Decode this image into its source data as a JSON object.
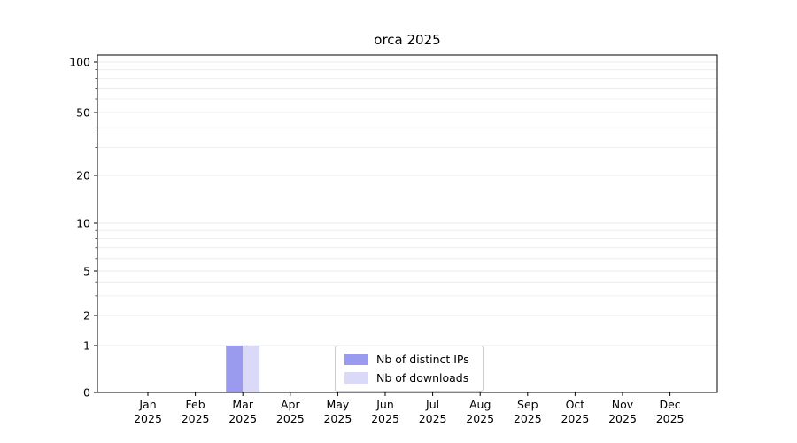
{
  "chart_data": {
    "type": "bar",
    "title": "orca 2025",
    "categories": [
      "Jan",
      "Feb",
      "Mar",
      "Apr",
      "May",
      "Jun",
      "Jul",
      "Aug",
      "Sep",
      "Oct",
      "Nov",
      "Dec"
    ],
    "x_year": "2025",
    "series": [
      {
        "name": "Nb of distinct IPs",
        "color": "#9a9aee",
        "values": [
          0,
          0,
          1,
          0,
          0,
          0,
          0,
          0,
          0,
          0,
          0,
          0
        ]
      },
      {
        "name": "Nb of downloads",
        "color": "#dadaf8",
        "values": [
          0,
          0,
          1,
          0,
          0,
          0,
          0,
          0,
          0,
          0,
          0,
          0
        ]
      }
    ],
    "y_axis": {
      "scale": "symlog",
      "tick_values": [
        0,
        1,
        2,
        5,
        10,
        20,
        50,
        100
      ],
      "minor_tick_values": [
        3,
        4,
        6,
        7,
        8,
        9,
        30,
        40,
        60,
        70,
        80,
        90
      ]
    },
    "ylim": [
      0,
      110
    ],
    "grid": "horizontal",
    "legend": {
      "position": "lower center inside",
      "entries": [
        "Nb of distinct IPs",
        "Nb of downloads"
      ]
    }
  },
  "colors": {
    "axis": "#000000",
    "grid_major": "#e0e0e0",
    "grid_minor": "#ebebeb",
    "background": "#ffffff",
    "legend_border": "#cccccc"
  }
}
